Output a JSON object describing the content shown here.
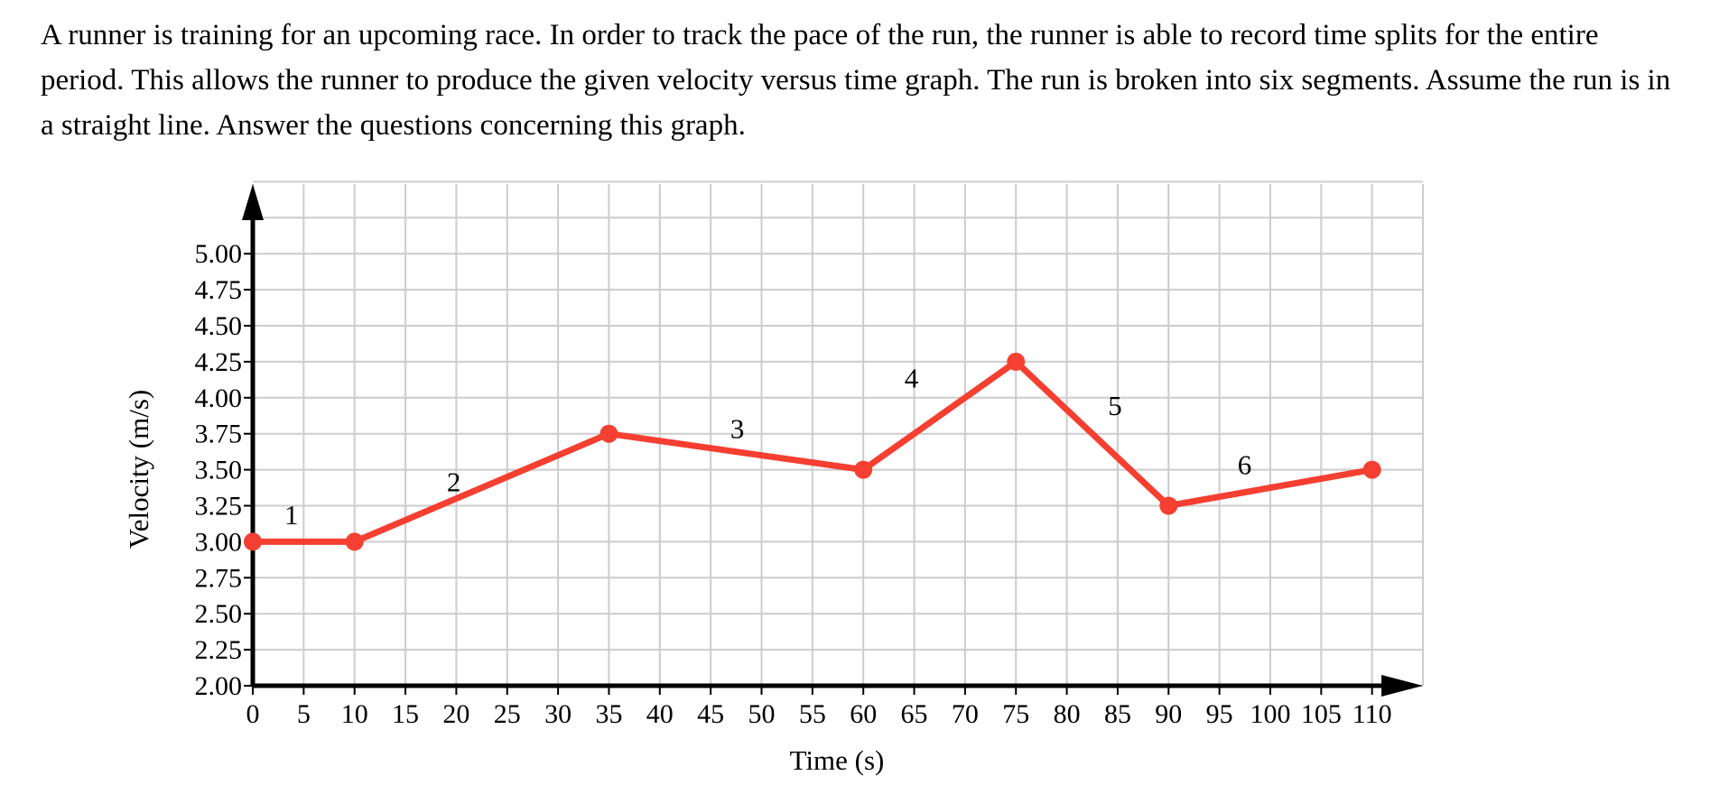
{
  "problem": {
    "text": "A runner is training for an upcoming race. In order to track the pace of the run, the runner is able to record time splits for the entire period. This allows the runner to produce the given velocity versus time graph. The run is broken into six segments. Assume the run is in a straight line. Answer the questions concerning this graph."
  },
  "chart_data": {
    "type": "line",
    "title": "",
    "xlabel": "Time (s)",
    "ylabel": "Velocity (m/s)",
    "xlim": [
      0,
      115
    ],
    "ylim": [
      2.0,
      5.5
    ],
    "grid": true,
    "x_tick_labels": [
      "0",
      "5",
      "10",
      "15",
      "20",
      "25",
      "30",
      "35",
      "40",
      "45",
      "50",
      "55",
      "60",
      "65",
      "70",
      "75",
      "80",
      "85",
      "90",
      "95",
      "100",
      "105",
      "110"
    ],
    "y_tick_labels": [
      "2.00",
      "2.25",
      "2.50",
      "2.75",
      "3.00",
      "3.25",
      "3.50",
      "3.75",
      "4.00",
      "4.25",
      "4.50",
      "4.75",
      "5.00"
    ],
    "series": [
      {
        "color": "#f43f31",
        "points": [
          {
            "x": 0,
            "y": 3.0
          },
          {
            "x": 10,
            "y": 3.0
          },
          {
            "x": 35,
            "y": 3.75
          },
          {
            "x": 60,
            "y": 3.5
          },
          {
            "x": 75,
            "y": 4.25
          },
          {
            "x": 90,
            "y": 3.25
          },
          {
            "x": 110,
            "y": 3.5
          }
        ]
      }
    ],
    "segment_labels": [
      "1",
      "2",
      "3",
      "4",
      "5",
      "6"
    ],
    "colors": {
      "line": "#f43f31",
      "grid": "#cccccc",
      "axis": "#000000"
    }
  }
}
